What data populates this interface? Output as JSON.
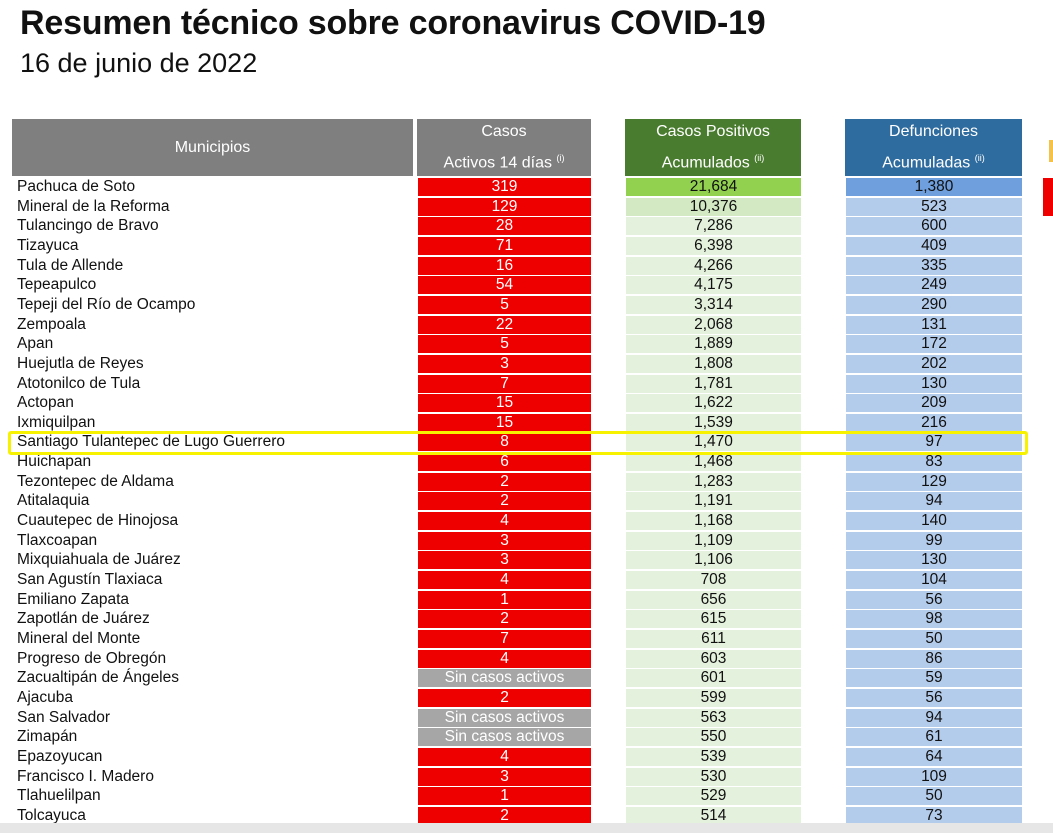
{
  "title": "Resumen técnico sobre coronavirus COVID-19",
  "date": "16 de junio de 2022",
  "headers": {
    "municipios": "Municipios",
    "activos_line1": "Casos",
    "activos_line2": "Activos 14 días",
    "activos_note": "(i)",
    "positivos_line1": "Casos Positivos",
    "positivos_line2": "Acumulados",
    "positivos_note": "(ii)",
    "defunciones_line1": "Defunciones",
    "defunciones_line2": "Acumuladas",
    "defunciones_note": "(ii)"
  },
  "colors": {
    "activos": "#ef0000",
    "sin_activos": "#a6a6a6",
    "positivos": "#e4f1dc",
    "defunciones": "#b4ccec",
    "highlight": "#f6f200"
  },
  "highlighted_municipio": "Santiago Tulantepec de Lugo Guerrero",
  "rows": [
    {
      "municipio": "Pachuca de Soto",
      "activos": "319",
      "positivos": "21,684",
      "defunciones": "1,380"
    },
    {
      "municipio": "Mineral de la Reforma",
      "activos": "129",
      "positivos": "10,376",
      "defunciones": "523"
    },
    {
      "municipio": "Tulancingo de Bravo",
      "activos": "28",
      "positivos": "7,286",
      "defunciones": "600"
    },
    {
      "municipio": "Tizayuca",
      "activos": "71",
      "positivos": "6,398",
      "defunciones": "409"
    },
    {
      "municipio": "Tula de Allende",
      "activos": "16",
      "positivos": "4,266",
      "defunciones": "335"
    },
    {
      "municipio": "Tepeapulco",
      "activos": "54",
      "positivos": "4,175",
      "defunciones": "249"
    },
    {
      "municipio": "Tepeji del Río de Ocampo",
      "activos": "5",
      "positivos": "3,314",
      "defunciones": "290"
    },
    {
      "municipio": "Zempoala",
      "activos": "22",
      "positivos": "2,068",
      "defunciones": "131"
    },
    {
      "municipio": "Apan",
      "activos": "5",
      "positivos": "1,889",
      "defunciones": "172"
    },
    {
      "municipio": "Huejutla de Reyes",
      "activos": "3",
      "positivos": "1,808",
      "defunciones": "202"
    },
    {
      "municipio": "Atotonilco de Tula",
      "activos": "7",
      "positivos": "1,781",
      "defunciones": "130"
    },
    {
      "municipio": "Actopan",
      "activos": "15",
      "positivos": "1,622",
      "defunciones": "209"
    },
    {
      "municipio": "Ixmiquilpan",
      "activos": "15",
      "positivos": "1,539",
      "defunciones": "216"
    },
    {
      "municipio": "Santiago Tulantepec de Lugo Guerrero",
      "activos": "8",
      "positivos": "1,470",
      "defunciones": "97"
    },
    {
      "municipio": "Huichapan",
      "activos": "6",
      "positivos": "1,468",
      "defunciones": "83"
    },
    {
      "municipio": "Tezontepec de Aldama",
      "activos": "2",
      "positivos": "1,283",
      "defunciones": "129"
    },
    {
      "municipio": "Atitalaquia",
      "activos": "2",
      "positivos": "1,191",
      "defunciones": "94"
    },
    {
      "municipio": "Cuautepec de Hinojosa",
      "activos": "4",
      "positivos": "1,168",
      "defunciones": "140"
    },
    {
      "municipio": "Tlaxcoapan",
      "activos": "3",
      "positivos": "1,109",
      "defunciones": "99"
    },
    {
      "municipio": "Mixquiahuala de Juárez",
      "activos": "3",
      "positivos": "1,106",
      "defunciones": "130"
    },
    {
      "municipio": "San Agustín Tlaxiaca",
      "activos": "4",
      "positivos": "708",
      "defunciones": "104"
    },
    {
      "municipio": "Emiliano Zapata",
      "activos": "1",
      "positivos": "656",
      "defunciones": "56"
    },
    {
      "municipio": "Zapotlán de Juárez",
      "activos": "2",
      "positivos": "615",
      "defunciones": "98"
    },
    {
      "municipio": "Mineral del Monte",
      "activos": "7",
      "positivos": "611",
      "defunciones": "50"
    },
    {
      "municipio": "Progreso de Obregón",
      "activos": "4",
      "positivos": "603",
      "defunciones": "86"
    },
    {
      "municipio": "Zacualtipán de Ángeles",
      "activos": "Sin casos activos",
      "positivos": "601",
      "defunciones": "59"
    },
    {
      "municipio": "Ajacuba",
      "activos": "2",
      "positivos": "599",
      "defunciones": "56"
    },
    {
      "municipio": "San Salvador",
      "activos": "Sin casos activos",
      "positivos": "563",
      "defunciones": "94"
    },
    {
      "municipio": "Zimapán",
      "activos": "Sin casos activos",
      "positivos": "550",
      "defunciones": "61"
    },
    {
      "municipio": "Epazoyucan",
      "activos": "4",
      "positivos": "539",
      "defunciones": "64"
    },
    {
      "municipio": "Francisco I. Madero",
      "activos": "3",
      "positivos": "530",
      "defunciones": "109"
    },
    {
      "municipio": "Tlahuelilpan",
      "activos": "1",
      "positivos": "529",
      "defunciones": "50"
    },
    {
      "municipio": "Tolcayuca",
      "activos": "2",
      "positivos": "514",
      "defunciones": "73"
    }
  ]
}
